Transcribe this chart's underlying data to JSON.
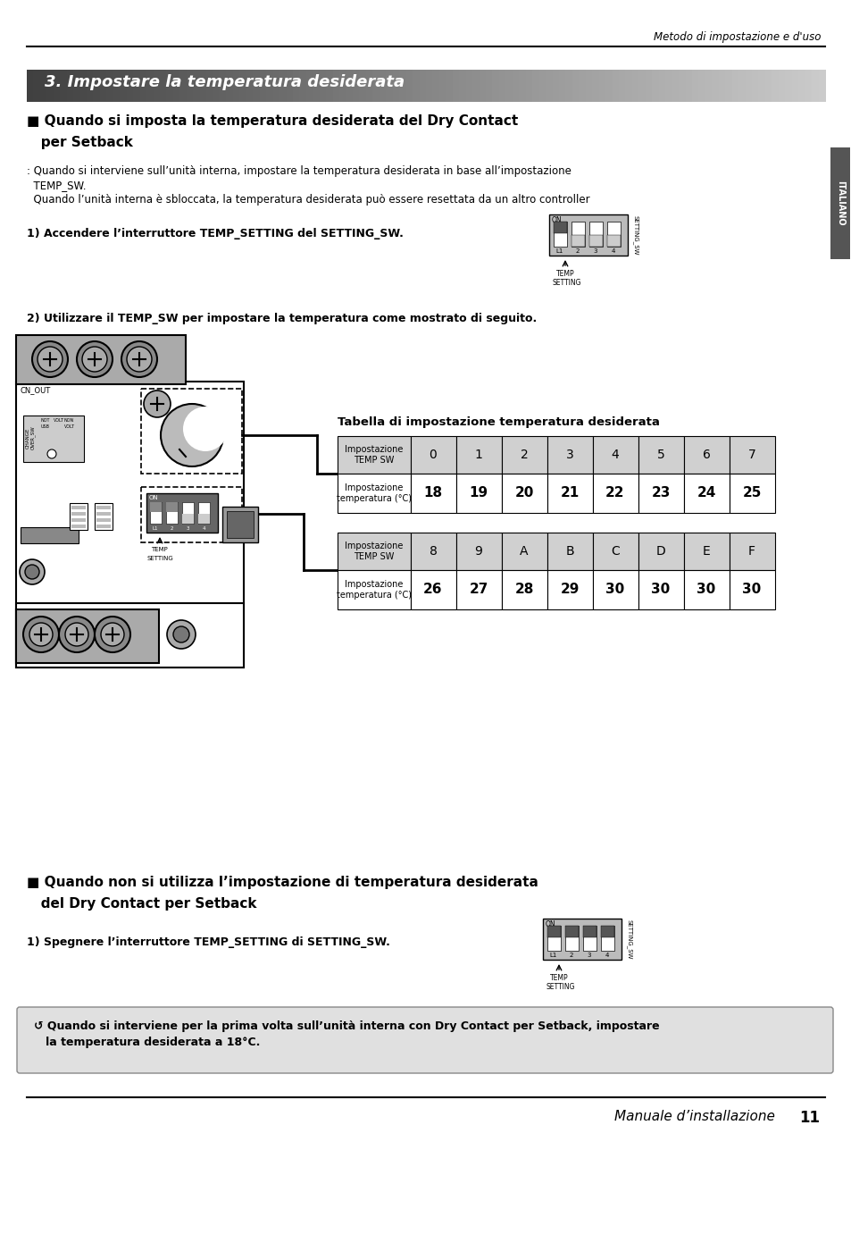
{
  "page_header": "Metodo di impostazione e d'uso",
  "section_title": "3. Impostare la temperatura desiderata",
  "section1_heading_line1": "■ Quando si imposta la temperatura desiderata del Dry Contact",
  "section1_heading_line2": "   per Setback",
  "section1_body1": ": Quando si interviene sull’unità interna, impostare la temperatura desiderata in base all’impostazione",
  "section1_body2": "  TEMP_SW.",
  "section1_body3": "  Quando l’unità interna è sbloccata, la temperatura desiderata può essere resettata da un altro controller",
  "step1_text": "1) Accendere l’interruttore TEMP_SETTING del SETTING_SW.",
  "step2_text": "2) Utilizzare il TEMP_SW per impostare la temperatura come mostrato di seguito.",
  "table_title": "Tabella di impostazione temperatura desiderata",
  "table1_row1_label": "Impostazione\nTEMP SW",
  "table1_row1_values": [
    "0",
    "1",
    "2",
    "3",
    "4",
    "5",
    "6",
    "7"
  ],
  "table1_row2_label": "Impostazione\ntemperatura (°C)",
  "table1_row2_values": [
    "18",
    "19",
    "20",
    "21",
    "22",
    "23",
    "24",
    "25"
  ],
  "table2_row1_label": "Impostazione\nTEMP SW",
  "table2_row1_values": [
    "8",
    "9",
    "A",
    "B",
    "C",
    "D",
    "E",
    "F"
  ],
  "table2_row2_label": "Impostazione\ntemperatura (°C)",
  "table2_row2_values": [
    "26",
    "27",
    "28",
    "29",
    "30",
    "30",
    "30",
    "30"
  ],
  "section2_heading_line1": "■ Quando non si utilizza l’impostazione di temperatura desiderata",
  "section2_heading_line2": "   del Dry Contact per Setback",
  "step3_text": "1) Spegnere l’interruttore TEMP_SETTING di SETTING_SW.",
  "note_text_line1": "↺ Quando si interviene per la prima volta sull’unità interna con Dry Contact per Setback, impostare",
  "note_text_line2": "   la temperatura desiderata a 18°C.",
  "footer_text": "Manuale d’installazione",
  "footer_page": "11",
  "italiano_tab": "ITALIANO"
}
